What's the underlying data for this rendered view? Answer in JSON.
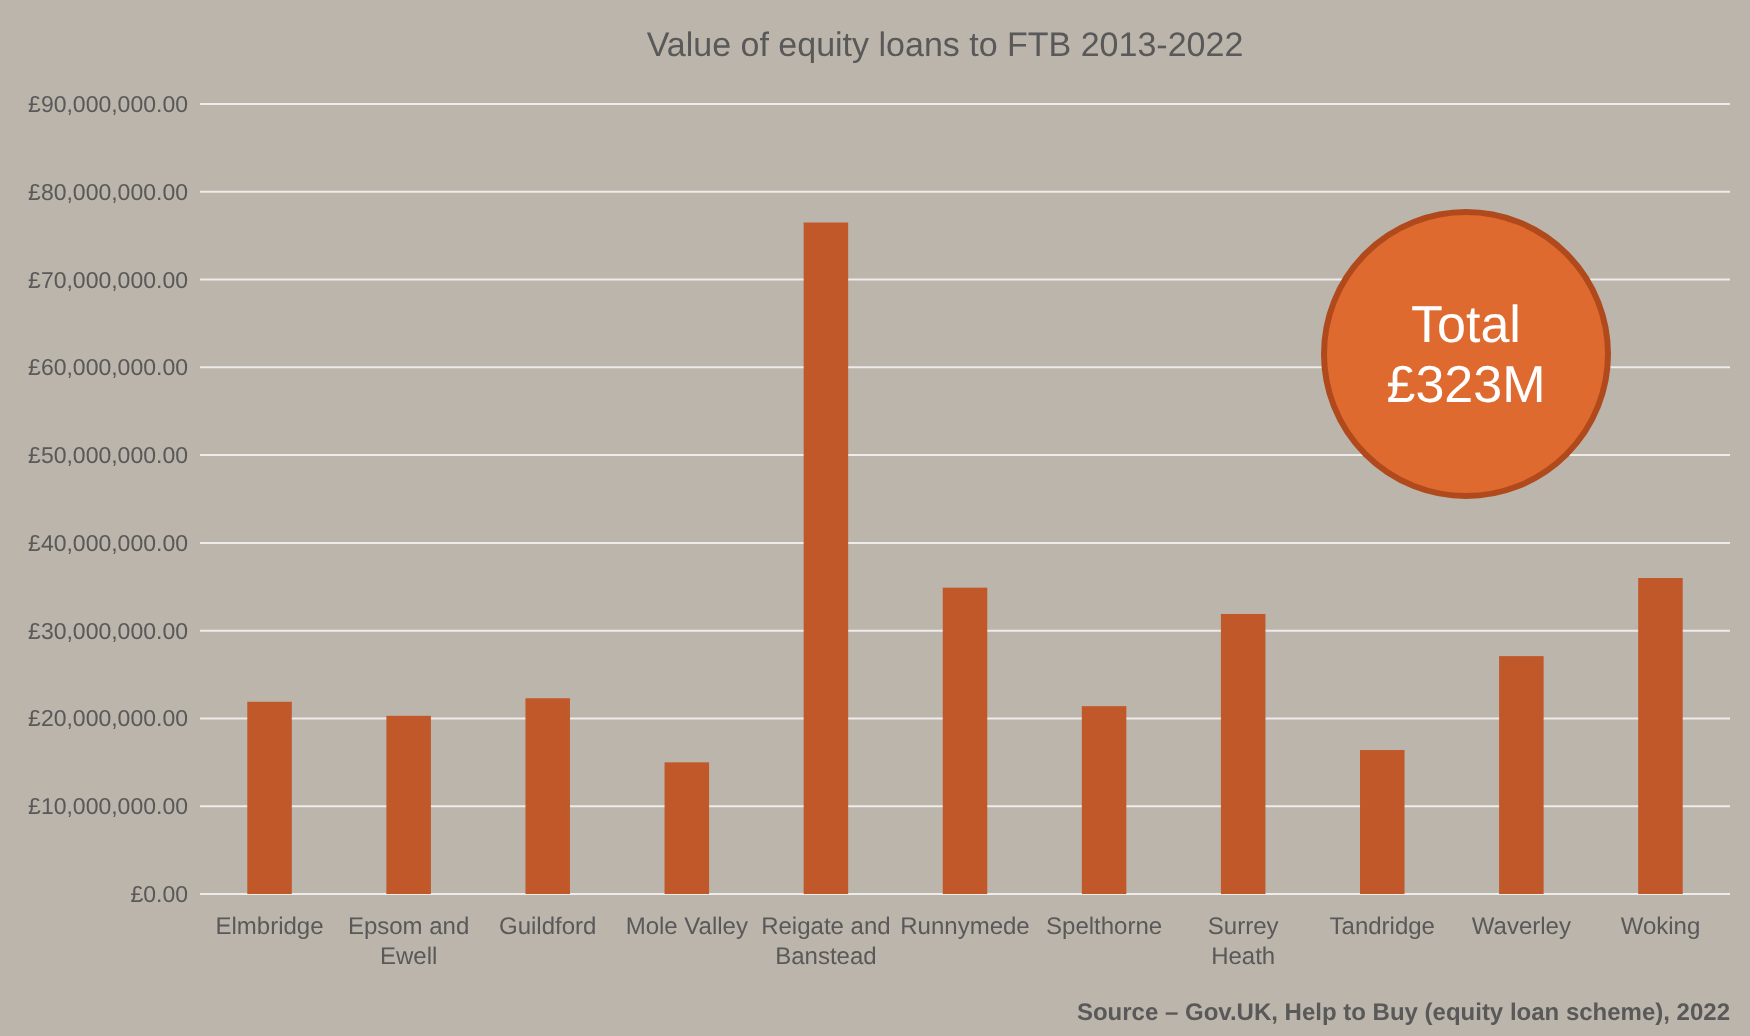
{
  "chart_data": {
    "type": "bar",
    "title": "Value of equity loans to FTB 2013-2022",
    "categories": [
      "Elmbridge",
      "Epsom and Ewell",
      "Guildford",
      "Mole Valley",
      "Reigate and Banstead",
      "Runnymede",
      "Spelthorne",
      "Surrey Heath",
      "Tandridge",
      "Waverley",
      "Woking"
    ],
    "values": [
      21900000,
      20300000,
      22300000,
      15000000,
      76500000,
      34900000,
      21400000,
      31900000,
      16400000,
      27100000,
      36000000
    ],
    "color": "#c0582a",
    "ylim": [
      0,
      90000000
    ],
    "yticks": [
      {
        "value": 0,
        "label": "£0.00"
      },
      {
        "value": 10000000,
        "label": "£10,000,000.00"
      },
      {
        "value": 20000000,
        "label": "£20,000,000.00"
      },
      {
        "value": 30000000,
        "label": "£30,000,000.00"
      },
      {
        "value": 40000000,
        "label": "£40,000,000.00"
      },
      {
        "value": 50000000,
        "label": "£50,000,000.00"
      },
      {
        "value": 60000000,
        "label": "£60,000,000.00"
      },
      {
        "value": 70000000,
        "label": "£70,000,000.00"
      },
      {
        "value": 80000000,
        "label": "£80,000,000.00"
      },
      {
        "value": 90000000,
        "label": "£90,000,000.00"
      }
    ],
    "grid": true,
    "annotations": [
      "Total £323M",
      "Source – Gov.UK, Help to Buy (equity loan scheme), 2022"
    ]
  }
}
